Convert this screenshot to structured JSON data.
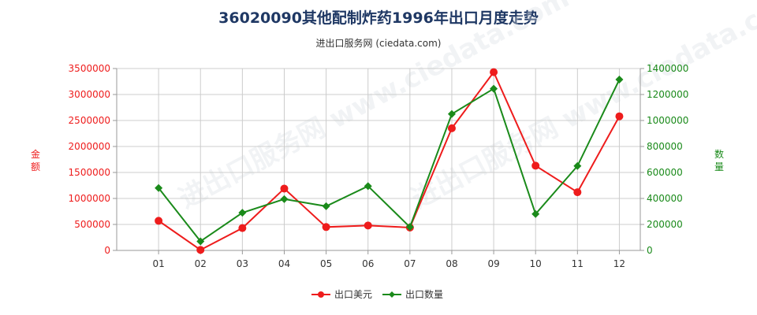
{
  "title": "36020090其他配制炸药1996年出口月度走势",
  "subtitle": "进出口服务网 (ciedata.com)",
  "watermark": "进出口服务网 www.ciedata.com",
  "colors": {
    "usd": "#ee1c1c",
    "qty": "#1a8a1a",
    "grid": "#cccccc",
    "axis": "#999999"
  },
  "chart_data": {
    "type": "line",
    "categories": [
      "01",
      "02",
      "03",
      "04",
      "05",
      "06",
      "07",
      "08",
      "09",
      "10",
      "11",
      "12"
    ],
    "series": [
      {
        "name": "出口美元",
        "axis": "left",
        "marker": "circle",
        "values": [
          570000,
          10000,
          430000,
          1190000,
          450000,
          480000,
          440000,
          2350000,
          3430000,
          1630000,
          1120000,
          2580000
        ]
      },
      {
        "name": "出口数量",
        "axis": "right",
        "marker": "diamond",
        "values": [
          480000,
          70000,
          290000,
          395000,
          340000,
          495000,
          180000,
          1050000,
          1245000,
          280000,
          650000,
          1315000
        ]
      }
    ],
    "y_left": {
      "label": "金额",
      "min": 0,
      "max": 3500000,
      "ticks": [
        0,
        500000,
        1000000,
        1500000,
        2000000,
        2500000,
        3000000,
        3500000
      ]
    },
    "y_right": {
      "label": "数量",
      "min": 0,
      "max": 1400000,
      "ticks": [
        0,
        200000,
        400000,
        600000,
        800000,
        1000000,
        1200000,
        1400000
      ]
    },
    "grid": true,
    "legend": "bottom-center"
  }
}
